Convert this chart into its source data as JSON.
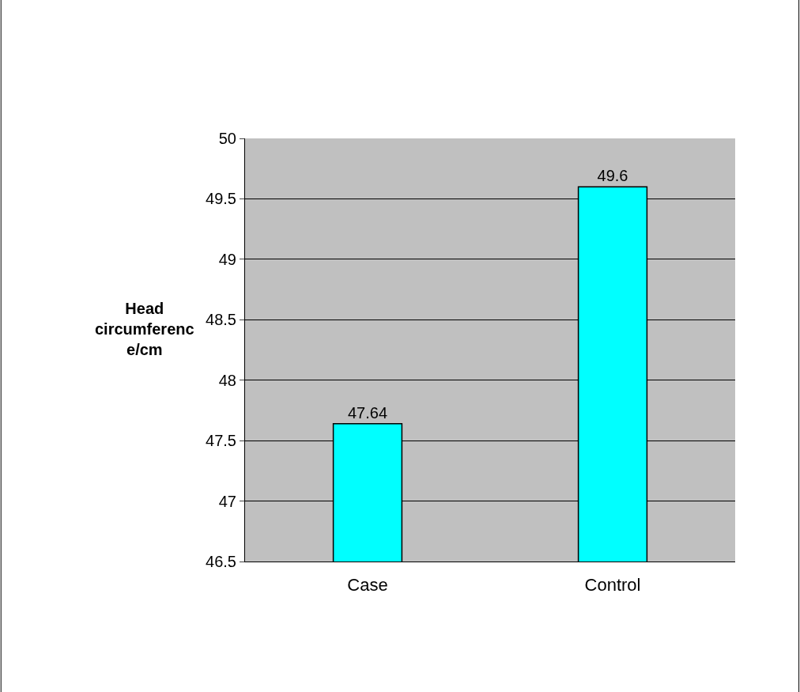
{
  "chart_data": {
    "type": "bar",
    "ylabel": "Head circumference/cm",
    "categories": [
      "Case",
      "Control"
    ],
    "values": [
      47.64,
      49.6
    ],
    "color": "#00ffff",
    "ylim": [
      46.5,
      50
    ],
    "yticks": [
      46.5,
      47,
      47.5,
      48,
      48.5,
      49,
      49.5,
      50
    ],
    "grid": "y",
    "data_labels": true
  }
}
